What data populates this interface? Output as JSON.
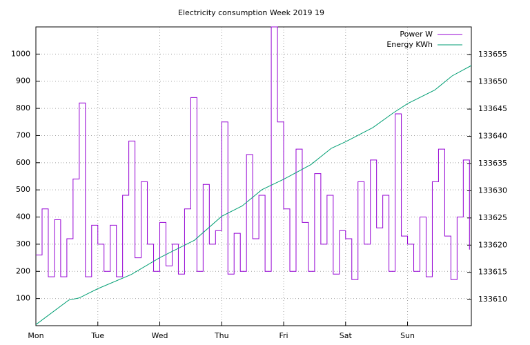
{
  "chart_data": {
    "type": "line",
    "title": "Electricity consumption Week 2019 19",
    "xlim": [
      0,
      7.03
    ],
    "xticks": [
      {
        "value": 0,
        "label": "Mon"
      },
      {
        "value": 1,
        "label": "Tue"
      },
      {
        "value": 2,
        "label": "Wed"
      },
      {
        "value": 3,
        "label": "Thu"
      },
      {
        "value": 4,
        "label": "Fri"
      },
      {
        "value": 5,
        "label": "Sat"
      },
      {
        "value": 6,
        "label": "Sun"
      }
    ],
    "ylim": [
      0,
      1100
    ],
    "yticks": [
      100,
      200,
      300,
      400,
      500,
      600,
      700,
      800,
      900,
      1000
    ],
    "y2lim": [
      133605.2,
      133660.1
    ],
    "y2ticks": [
      133610,
      133615,
      133620,
      133625,
      133630,
      133635,
      133640,
      133645,
      133650,
      133655
    ],
    "grid": true,
    "legend": "top-right",
    "series": [
      {
        "name": "Power W",
        "color": "#9400d3",
        "x": [
          0,
          0.1,
          0.2,
          0.3,
          0.4,
          0.5,
          0.6,
          0.7,
          0.8,
          0.9,
          1,
          1.1,
          1.2,
          1.3,
          1.4,
          1.5,
          1.6,
          1.7,
          1.8,
          1.9,
          2,
          2.1,
          2.2,
          2.3,
          2.4,
          2.5,
          2.6,
          2.7,
          2.8,
          2.9,
          3,
          3.1,
          3.2,
          3.3,
          3.4,
          3.5,
          3.6,
          3.7,
          3.8,
          3.9,
          4,
          4.1,
          4.2,
          4.3,
          4.4,
          4.5,
          4.6,
          4.7,
          4.8,
          4.9,
          5,
          5.1,
          5.2,
          5.3,
          5.4,
          5.5,
          5.6,
          5.7,
          5.8,
          5.9,
          6,
          6.1,
          6.2,
          6.3,
          6.4,
          6.5,
          6.6,
          6.7,
          6.8,
          6.9,
          7
        ],
        "values": [
          260,
          430,
          180,
          390,
          180,
          320,
          540,
          820,
          180,
          370,
          300,
          200,
          370,
          180,
          480,
          680,
          250,
          530,
          300,
          200,
          380,
          220,
          300,
          190,
          430,
          840,
          200,
          520,
          300,
          350,
          750,
          190,
          340,
          200,
          630,
          320,
          480,
          200,
          1100,
          750,
          430,
          200,
          650,
          380,
          200,
          560,
          300,
          480,
          190,
          350,
          320,
          170,
          530,
          300,
          610,
          360,
          480,
          200,
          780,
          330,
          300,
          200,
          400,
          180,
          530,
          650,
          330,
          170,
          400,
          610,
          280
        ]
      },
      {
        "name": "Energy KWh",
        "color": "#009e73",
        "axis": "y2",
        "x": [
          0,
          0.53,
          0.7,
          1,
          1.54,
          2,
          2.56,
          3,
          3.33,
          3.65,
          4,
          4.44,
          4.77,
          5,
          5.44,
          5.77,
          6,
          6.44,
          6.72,
          7.03
        ],
        "values": [
          133605.4,
          133609.9,
          133610.3,
          133612,
          133614.6,
          133617.7,
          133620.9,
          133625.3,
          133627.2,
          133630.2,
          133632.1,
          133634.8,
          133637.8,
          133639,
          133641.6,
          133644.3,
          133646,
          133648.5,
          133651.1,
          133653
        ]
      }
    ]
  }
}
